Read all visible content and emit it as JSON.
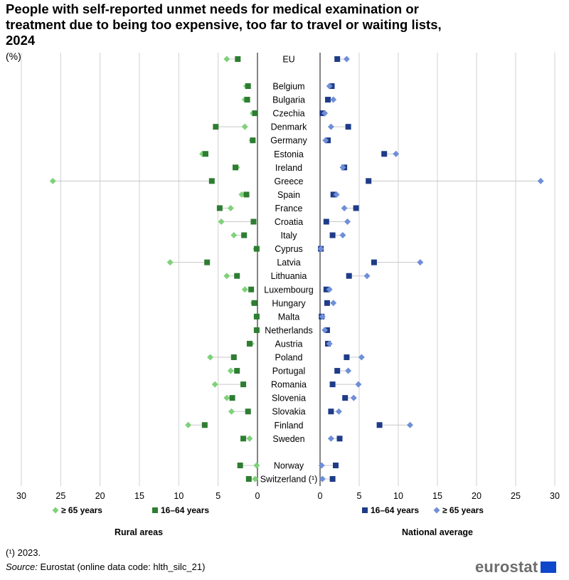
{
  "title": "People with self-reported unmet needs for medical examination or treatment due to being too expensive, too far to travel or waiting lists, 2024",
  "unit": "(%)",
  "footnote": "(¹) 2023.",
  "source_label": "Source:",
  "source_text": "Eurostat (online data code: hlth_silc_21)",
  "logo_text": "eurostat",
  "colors": {
    "rural_65": "#7fd17a",
    "rural_1664": "#2e7d32",
    "nat_1664": "#1f3c88",
    "nat_65": "#6f8fd8",
    "line": "#c8c8c8",
    "grid": "#d0d0d0"
  },
  "chart_data": {
    "type": "scatter",
    "layout": "dual-panel dot plot (rural areas mirrored left, national average right)",
    "panels": [
      {
        "name": "Rural areas",
        "xlim": [
          30,
          0
        ],
        "ticks": [
          30,
          25,
          20,
          15,
          10,
          5,
          0
        ]
      },
      {
        "name": "National average",
        "xlim": [
          0,
          30
        ],
        "ticks": [
          0,
          5,
          10,
          15,
          20,
          25,
          30
        ]
      }
    ],
    "legend": {
      "rural": [
        "≥ 65 years",
        "16–64 years"
      ],
      "national": [
        "16–64 years",
        "≥ 65 years"
      ]
    },
    "series_names": [
      "Rural areas 16–64 years",
      "Rural areas ≥ 65 years",
      "National average 16–64 years",
      "National average ≥ 65 years"
    ],
    "countries": [
      {
        "name": "EU",
        "rural_1664": 2.5,
        "rural_65": 3.9,
        "nat_1664": 2.2,
        "nat_65": 3.4
      },
      {
        "name": "Belgium",
        "rural_1664": 1.2,
        "rural_65": 1.4,
        "nat_1664": 1.5,
        "nat_65": 1.2
      },
      {
        "name": "Bulgaria",
        "rural_1664": 1.3,
        "rural_65": 1.6,
        "nat_1664": 1.0,
        "nat_65": 1.7
      },
      {
        "name": "Czechia",
        "rural_1664": 0.3,
        "rural_65": 0.6,
        "nat_1664": 0.3,
        "nat_65": 0.6
      },
      {
        "name": "Denmark",
        "rural_1664": 5.3,
        "rural_65": 1.6,
        "nat_1664": 3.6,
        "nat_65": 1.4
      },
      {
        "name": "Germany",
        "rural_1664": 0.6,
        "rural_65": 0.7,
        "nat_1664": 1.0,
        "nat_65": 0.7
      },
      {
        "name": "Estonia",
        "rural_1664": 6.6,
        "rural_65": 7.0,
        "nat_1664": 8.2,
        "nat_65": 9.7
      },
      {
        "name": "Ireland",
        "rural_1664": 2.8,
        "rural_65": 2.6,
        "nat_1664": 3.1,
        "nat_65": 2.9
      },
      {
        "name": "Greece",
        "rural_1664": 5.8,
        "rural_65": 26.0,
        "nat_1664": 6.2,
        "nat_65": 28.2
      },
      {
        "name": "Spain",
        "rural_1664": 1.4,
        "rural_65": 2.0,
        "nat_1664": 1.7,
        "nat_65": 2.1
      },
      {
        "name": "France",
        "rural_1664": 4.8,
        "rural_65": 3.4,
        "nat_1664": 4.6,
        "nat_65": 3.1
      },
      {
        "name": "Croatia",
        "rural_1664": 0.5,
        "rural_65": 4.6,
        "nat_1664": 0.8,
        "nat_65": 3.5
      },
      {
        "name": "Italy",
        "rural_1664": 1.7,
        "rural_65": 3.0,
        "nat_1664": 1.6,
        "nat_65": 2.9
      },
      {
        "name": "Cyprus",
        "rural_1664": 0.1,
        "rural_65": 0.2,
        "nat_1664": 0.1,
        "nat_65": 0.1
      },
      {
        "name": "Latvia",
        "rural_1664": 6.4,
        "rural_65": 11.1,
        "nat_1664": 6.9,
        "nat_65": 12.8
      },
      {
        "name": "Lithuania",
        "rural_1664": 2.6,
        "rural_65": 3.9,
        "nat_1664": 3.7,
        "nat_65": 6.0
      },
      {
        "name": "Luxembourg",
        "rural_1664": 0.8,
        "rural_65": 1.6,
        "nat_1664": 0.8,
        "nat_65": 1.2
      },
      {
        "name": "Hungary",
        "rural_1664": 0.4,
        "rural_65": 0.5,
        "nat_1664": 0.9,
        "nat_65": 1.7
      },
      {
        "name": "Malta",
        "rural_1664": 0.1,
        "rural_65": 0.1,
        "nat_1664": 0.2,
        "nat_65": 0.3
      },
      {
        "name": "Netherlands",
        "rural_1664": 0.1,
        "rural_65": 0.1,
        "nat_1664": 0.9,
        "nat_65": 0.6
      },
      {
        "name": "Austria",
        "rural_1664": 1.0,
        "rural_65": 0.8,
        "nat_1664": 1.0,
        "nat_65": 1.2
      },
      {
        "name": "Poland",
        "rural_1664": 3.0,
        "rural_65": 6.0,
        "nat_1664": 3.4,
        "nat_65": 5.3
      },
      {
        "name": "Portugal",
        "rural_1664": 2.6,
        "rural_65": 3.4,
        "nat_1664": 2.2,
        "nat_65": 3.6
      },
      {
        "name": "Romania",
        "rural_1664": 1.8,
        "rural_65": 5.4,
        "nat_1664": 1.6,
        "nat_65": 4.9
      },
      {
        "name": "Slovenia",
        "rural_1664": 3.2,
        "rural_65": 3.9,
        "nat_1664": 3.2,
        "nat_65": 4.3
      },
      {
        "name": "Slovakia",
        "rural_1664": 1.2,
        "rural_65": 3.3,
        "nat_1664": 1.4,
        "nat_65": 2.4
      },
      {
        "name": "Finland",
        "rural_1664": 6.7,
        "rural_65": 8.8,
        "nat_1664": 7.6,
        "nat_65": 11.5
      },
      {
        "name": "Sweden",
        "rural_1664": 1.8,
        "rural_65": 1.0,
        "nat_1664": 2.5,
        "nat_65": 1.4
      },
      {
        "name": "Norway",
        "rural_1664": 2.2,
        "rural_65": 0.1,
        "nat_1664": 2.0,
        "nat_65": 0.2
      },
      {
        "name": "Switzerland (¹)",
        "rural_1664": 1.1,
        "rural_65": 0.3,
        "nat_1664": 1.6,
        "nat_65": 0.3
      }
    ]
  }
}
